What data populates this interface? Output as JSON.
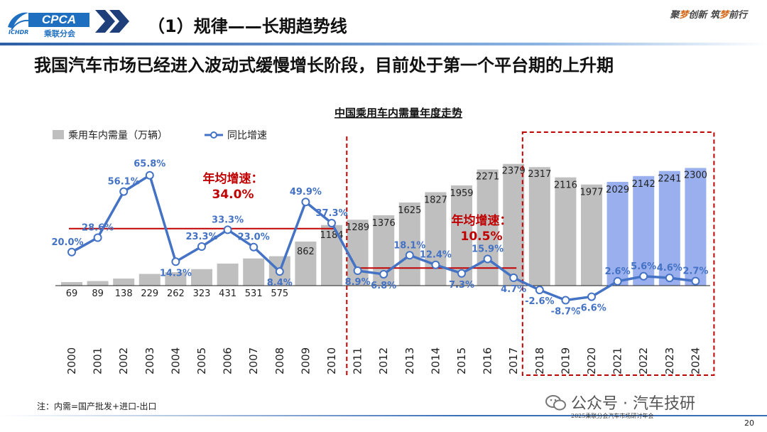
{
  "header": {
    "logo_text": "CPCA",
    "logo_sub": "乘联分会",
    "logo_en": "ICHDR",
    "section_title": "（1）规律——长期趋势线",
    "slogan_parts": [
      "聚",
      "梦",
      "创新 ",
      "筑",
      "梦",
      "前行"
    ]
  },
  "subtitle": "我国汽车市场已经进入波动式缓慢增长阶段，目前处于第一个平台期的上升期",
  "chart_data": {
    "type": "bar",
    "title": "中国乘用车内需量年度走势",
    "categories": [
      "2000",
      "2001",
      "2002",
      "2003",
      "2004",
      "2005",
      "2006",
      "2007",
      "2008",
      "2009",
      "2010",
      "2011",
      "2012",
      "2013",
      "2014",
      "2015",
      "2016",
      "2017",
      "2018",
      "2019",
      "2020",
      "2021",
      "2022",
      "2023",
      "2024"
    ],
    "series": [
      {
        "name": "乘用车内需量（万辆）",
        "type": "bar",
        "values": [
          69,
          89,
          138,
          229,
          262,
          323,
          431,
          531,
          575,
          862,
          1184,
          1289,
          1376,
          1625,
          1827,
          1959,
          2271,
          2379,
          2317,
          2116,
          1977,
          2029,
          2142,
          2241,
          2300
        ],
        "labels": [
          "69",
          "89",
          "138",
          "229",
          "262",
          "323",
          "431",
          "531",
          "575",
          "862",
          "1184",
          "1289",
          "1376",
          "1625",
          "1827",
          "1959",
          "2271",
          "2379",
          "2317",
          "2116",
          "1977",
          "2029",
          "2142",
          "2241",
          "2300"
        ]
      },
      {
        "name": "同比增速",
        "type": "line",
        "values": [
          20.0,
          28.6,
          56.1,
          65.8,
          14.3,
          23.3,
          33.3,
          23.0,
          8.4,
          49.9,
          37.3,
          8.9,
          6.8,
          18.1,
          12.4,
          7.3,
          15.9,
          4.7,
          -2.6,
          -8.7,
          -6.6,
          2.6,
          5.6,
          4.6,
          2.7
        ],
        "labels": [
          "20.0%",
          "28.6%",
          "56.1%",
          "65.8%",
          "14.3%",
          "23.3%",
          "33.3%",
          "23.0%",
          "8.4%",
          "49.9%",
          "37.3%",
          "8.9%",
          "6.8%",
          "18.1%",
          "12.4%",
          "7.3%",
          "15.9%",
          "4.7%",
          "-2.6%",
          "-8.7%",
          "-6.6%",
          "2.6%",
          "5.6%",
          "4.6%",
          "2.7%"
        ]
      }
    ],
    "annotations": [
      {
        "label": "年均增速：",
        "value": "34.0%",
        "start": "2000",
        "end": "2010",
        "avg_growth": 34.0
      },
      {
        "label": "年均增速：",
        "value": "10.5%",
        "start": "2011",
        "end": "2017",
        "avg_growth": 10.5
      }
    ],
    "highlight_range": [
      "2018",
      "2024"
    ],
    "divider_after": "2010",
    "forecast_range": [
      "2021",
      "2024"
    ],
    "colors": {
      "bar": "#bfbfbf",
      "bar_highlight": "#9ab0ee",
      "line": "#4472c4",
      "avg_line": "#c00000",
      "annotation": "#c00000",
      "frame": "#c00000"
    },
    "legend_position": "top-left"
  },
  "footnote": "注：内需=国产批发+进口-出口",
  "watermark": "公众号 · 汽车技研",
  "meeting_text": "2025乘联分会汽车市场研讨年会",
  "page_number": "20"
}
